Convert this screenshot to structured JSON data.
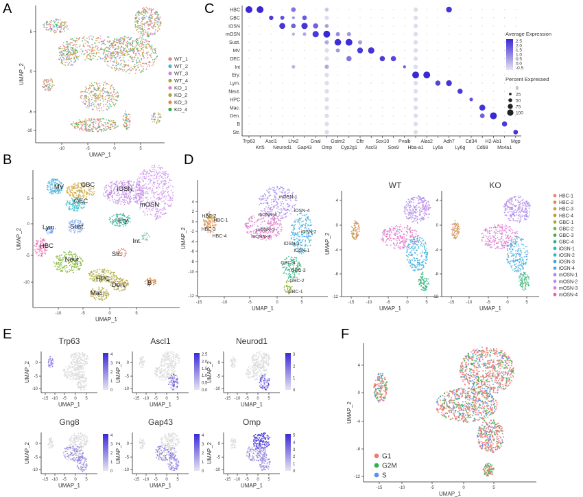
{
  "panel_labels": {
    "a": "A",
    "b": "B",
    "c": "C",
    "d": "D",
    "e": "E",
    "f": "F"
  },
  "colors": {
    "hbc": "#e8837a",
    "gbc": "#c9a43a",
    "iosn": "#45b9d6",
    "mosn": "#c78be6",
    "osn_pink": "#ea5fa9",
    "g1": "#f07b72",
    "g2m": "#2fb24c",
    "s": "#5b8ff0",
    "expr_low": "#d9d9d9",
    "expr_high": "#3a28d6",
    "umap_green": "#4aa84a",
    "umap_olive": "#a7a63a",
    "umap_orange": "#e58a3a"
  },
  "chart_data": [
    {
      "id": "A",
      "type": "scatter",
      "title": "",
      "xlabel": "UMAP_1",
      "ylabel": "UMAP_2",
      "xticks": [
        "-10",
        "-5",
        "0",
        "5"
      ],
      "yticks": [
        "5",
        "0",
        "-5",
        "-10"
      ],
      "legend_position": "right",
      "series": [
        {
          "name": "WT_1",
          "color": "#e8837a"
        },
        {
          "name": "WT_2",
          "color": "#46b5d6"
        },
        {
          "name": "WT_3",
          "color": "#c78be6"
        },
        {
          "name": "WT_4",
          "color": "#a7a63a"
        },
        {
          "name": "KO_1",
          "color": "#e87fb0"
        },
        {
          "name": "KO_2",
          "color": "#a7a63a"
        },
        {
          "name": "KO_3",
          "color": "#e58a3a"
        },
        {
          "name": "KO_4",
          "color": "#2fb24c"
        }
      ]
    },
    {
      "id": "B",
      "type": "scatter",
      "xlabel": "UMAP_1",
      "ylabel": "UMAP_2",
      "xticks": [
        "-10",
        "-5",
        "0",
        "5"
      ],
      "yticks": [
        "5",
        "0",
        "-5",
        "-10"
      ],
      "cluster_labels": [
        "MV",
        "GBC",
        "iOSN",
        "OEC",
        "mOSN",
        "Ery.",
        "Lym.",
        "Sust.",
        "Int.",
        "HBC",
        "Str.",
        "Neut.",
        "HPC",
        "Den.",
        "B",
        "Mac."
      ]
    },
    {
      "id": "C",
      "type": "dotplot",
      "rows": [
        "HBC",
        "GBC",
        "iOSN",
        "mOSN",
        "Sust.",
        "MV",
        "OEC",
        "Int",
        "Ery.",
        "Lym.",
        "Neut.",
        "HPC",
        "Mac.",
        "Den.",
        "B",
        "Str."
      ],
      "genes": [
        "Trp63",
        "Krt5",
        "Ascl1",
        "Neurod1",
        "Lhx2",
        "Gap43",
        "Gnal",
        "Omp",
        "Gstm2",
        "Cyp2g1",
        "Cftr",
        "Ascl3",
        "Sox10",
        "Sox9",
        "Pvalb",
        "Hba-a1",
        "Alas2",
        "Ly6a",
        "Adh7",
        "Ly6g",
        "Cd34",
        "Cd68",
        "H2-Ab1",
        "Ms4a1",
        "Mgp"
      ],
      "color_legend": {
        "title": "Average Expression",
        "ticks": [
          "2.5",
          "2.0",
          "1.5",
          "1.0",
          "0.5",
          "0.0",
          "-0.5"
        ]
      },
      "size_legend": {
        "title": "Percent Expressed",
        "ticks": [
          "0",
          "25",
          "50",
          "75",
          "100"
        ]
      },
      "dots": [
        [
          0,
          0,
          1.0,
          2.5
        ],
        [
          0,
          1,
          1.0,
          2.5
        ],
        [
          0,
          4,
          0.6,
          1.2
        ],
        [
          0,
          7,
          0.2,
          0.0
        ],
        [
          0,
          18,
          0.8,
          2.3
        ],
        [
          1,
          2,
          0.55,
          2.2
        ],
        [
          1,
          3,
          0.5,
          1.8
        ],
        [
          1,
          5,
          0.6,
          1.6
        ],
        [
          1,
          4,
          0.3,
          0.5
        ],
        [
          2,
          3,
          0.85,
          2.3
        ],
        [
          2,
          4,
          0.6,
          1.5
        ],
        [
          2,
          5,
          0.9,
          2.3
        ],
        [
          2,
          6,
          0.7,
          1.5
        ],
        [
          2,
          7,
          0.4,
          0.5
        ],
        [
          3,
          5,
          0.4,
          0.3
        ],
        [
          3,
          6,
          0.9,
          2.2
        ],
        [
          3,
          7,
          1.0,
          2.5
        ],
        [
          3,
          8,
          0.5,
          0.8
        ],
        [
          3,
          9,
          0.5,
          0.6
        ],
        [
          3,
          4,
          0.3,
          0.2
        ],
        [
          4,
          7,
          0.5,
          0.3
        ],
        [
          4,
          8,
          0.95,
          2.4
        ],
        [
          4,
          9,
          1.0,
          2.4
        ],
        [
          4,
          10,
          0.5,
          0.5
        ],
        [
          5,
          10,
          0.8,
          2.2
        ],
        [
          5,
          11,
          0.9,
          2.3
        ],
        [
          5,
          8,
          0.5,
          0.6
        ],
        [
          6,
          9,
          0.7,
          1.2
        ],
        [
          6,
          12,
          0.7,
          2.2
        ],
        [
          6,
          13,
          0.7,
          2.0
        ],
        [
          7,
          4,
          0.4,
          0.1
        ],
        [
          7,
          7,
          0.5,
          0.3
        ],
        [
          7,
          14,
          0.3,
          1.5
        ],
        [
          8,
          15,
          1.0,
          2.5
        ],
        [
          8,
          16,
          1.0,
          2.5
        ],
        [
          9,
          17,
          0.7,
          2.0
        ],
        [
          9,
          18,
          0.8,
          2.3
        ],
        [
          10,
          19,
          0.7,
          2.2
        ],
        [
          11,
          20,
          0.4,
          1.8
        ],
        [
          12,
          21,
          0.85,
          2.3
        ],
        [
          13,
          21,
          0.6,
          1.5
        ],
        [
          13,
          22,
          1.0,
          2.5
        ],
        [
          14,
          23,
          0.7,
          2.2
        ],
        [
          15,
          24,
          0.6,
          2.3
        ]
      ]
    },
    {
      "id": "D",
      "type": "scatter",
      "xlabel": "UMAP_1",
      "ylabel": "UMAP_2",
      "subtitles": [
        "WT",
        "KO"
      ],
      "xticks_left": [
        "-15",
        "-10",
        "-5",
        "0",
        "5"
      ],
      "yticks_left": [
        "4",
        "2",
        "0",
        "-2",
        "-4",
        "-6",
        "-8",
        "-10",
        "-12"
      ],
      "xticks": [
        "-15",
        "-10",
        "-5",
        "0",
        "5"
      ],
      "yticks": [
        "4",
        "0",
        "-4",
        "-8",
        "-12"
      ],
      "cluster_labels": [
        "mOSN-1",
        "iOSN-4",
        "mOSN-4",
        "HBC-2",
        "HBC-1",
        "mOSN-2",
        "iOSN-2",
        "HBC-3",
        "mOSN-3",
        "HBC-4",
        "iOSN-3",
        "iOSN-1",
        "GBC-4",
        "GBC-3",
        "GBC-2",
        "GBC-1"
      ],
      "legend": [
        {
          "name": "HBC-1",
          "color": "#e8837a"
        },
        {
          "name": "HBC-2",
          "color": "#e58a3a"
        },
        {
          "name": "HBC-3",
          "color": "#d39a3c"
        },
        {
          "name": "HBC-4",
          "color": "#b7a234"
        },
        {
          "name": "GBC-1",
          "color": "#a7a63a"
        },
        {
          "name": "GBC-2",
          "color": "#7fb23a"
        },
        {
          "name": "GBC-3",
          "color": "#3fb24c"
        },
        {
          "name": "GBC-4",
          "color": "#2fb38a"
        },
        {
          "name": "iOSN-1",
          "color": "#30b6a8"
        },
        {
          "name": "iOSN-2",
          "color": "#2fb8c6"
        },
        {
          "name": "iOSN-3",
          "color": "#34acdc"
        },
        {
          "name": "iOSN-4",
          "color": "#5b9ff0"
        },
        {
          "name": "mOSN-1",
          "color": "#9e8df0"
        },
        {
          "name": "mOSN-2",
          "color": "#c78be6"
        },
        {
          "name": "mOSN-3",
          "color": "#e27bd8"
        },
        {
          "name": "mOSN-4",
          "color": "#ea5fa9"
        }
      ]
    },
    {
      "id": "E",
      "type": "scatter",
      "xlabel": "UMAP_1",
      "ylabel": "UMAP_2",
      "xticks": [
        "-15",
        "-10",
        "-5",
        "0",
        "5"
      ],
      "yticks": [
        "0",
        "-5",
        "-10"
      ],
      "genes": [
        {
          "name": "Trp63",
          "ticks": [
            "4",
            "3",
            "2",
            "1",
            "0"
          ]
        },
        {
          "name": "Ascl1",
          "ticks": [
            "2.5",
            "2.0",
            "1.5",
            "1.0",
            "0.5",
            "0.0"
          ]
        },
        {
          "name": "Neurod1",
          "ticks": [
            "3",
            "2",
            "1",
            "0"
          ]
        },
        {
          "name": "Gng8",
          "ticks": [
            "4",
            "3",
            "2",
            "1",
            "0"
          ]
        },
        {
          "name": "Gap43",
          "ticks": [
            "4",
            "3",
            "2",
            "1",
            "0"
          ]
        },
        {
          "name": "Omp",
          "ticks": [
            "5",
            "4",
            "3",
            "2",
            "1",
            "0"
          ]
        }
      ]
    },
    {
      "id": "F",
      "type": "scatter",
      "xlabel": "UMAP_1",
      "ylabel": "UMAP_2",
      "xticks": [
        "-15",
        "-10",
        "-5",
        "0",
        "5"
      ],
      "yticks": [
        "4",
        "0",
        "-4",
        "-8",
        "-12"
      ],
      "legend": [
        {
          "name": "G1",
          "color": "#f07b72"
        },
        {
          "name": "G2M",
          "color": "#2fb24c"
        },
        {
          "name": "S",
          "color": "#5b8ff0"
        }
      ]
    }
  ]
}
